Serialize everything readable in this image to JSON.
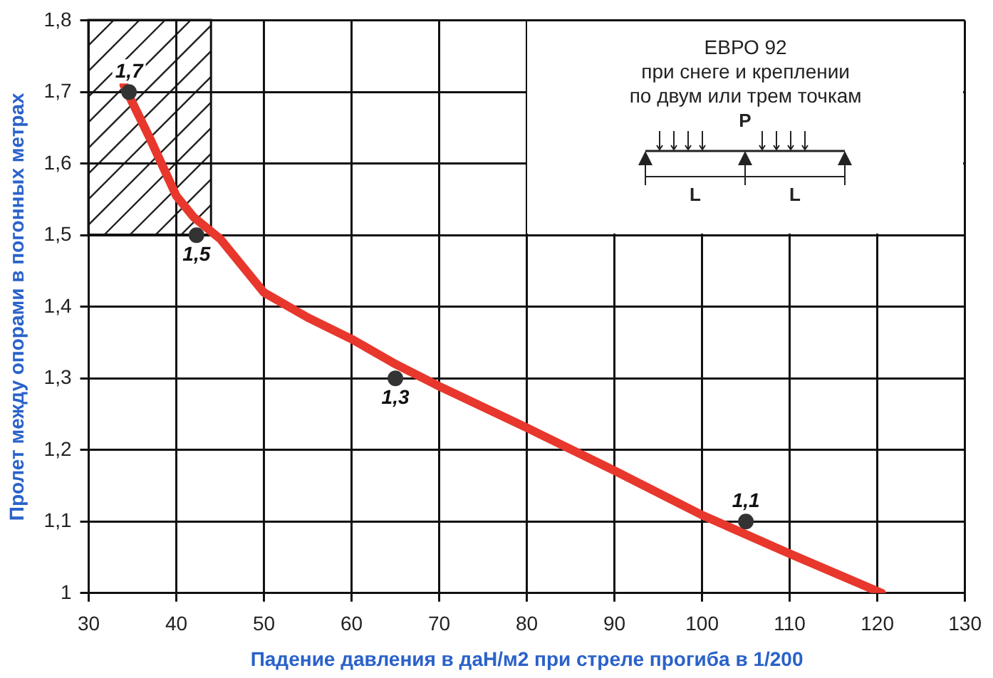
{
  "chart_data": {
    "type": "line",
    "xlabel": "Падение давления в даН/м2 при стреле прогиба в 1/200",
    "ylabel": "Пролет между опорами в погонных метрах",
    "xlim": [
      30,
      130
    ],
    "xticks": [
      30,
      40,
      50,
      60,
      70,
      80,
      90,
      100,
      110,
      120,
      130
    ],
    "ylim": [
      1,
      1.8
    ],
    "yticks": [
      1,
      {
        "value": 1.1,
        "label": "1,1"
      },
      {
        "value": 1.2,
        "label": "1,2"
      },
      {
        "value": 1.3,
        "label": "1,3"
      },
      {
        "value": 1.4,
        "label": "1,4"
      },
      {
        "value": 1.5,
        "label": "1,5"
      },
      {
        "value": 1.6,
        "label": "1,6"
      },
      {
        "value": 1.7,
        "label": "1,7"
      },
      {
        "value": 1.8,
        "label": "1,8"
      }
    ],
    "grid": true,
    "annotations": [
      "ЕВРО 92\nпри снеге и креплении\nпо двум или трем точкам",
      "P",
      "L",
      "L"
    ],
    "series": [
      {
        "color": "#e8372c",
        "marker": "none",
        "x": [
          34,
          37,
          40,
          42,
          45,
          50,
          55,
          60,
          65,
          70,
          80,
          90,
          100,
          110,
          120.5
        ],
        "values": [
          1.71,
          1.635,
          1.555,
          1.525,
          1.495,
          1.42,
          1.385,
          1.355,
          1.32,
          1.289,
          1.231,
          1.171,
          1.109,
          1.055,
          1.0
        ]
      },
      {
        "type": "scatter",
        "color": "#333333",
        "marker": "circle",
        "x": [
          34.6,
          42.3,
          65,
          105
        ],
        "values": [
          1.7,
          1.5,
          1.3,
          1.1
        ],
        "value_labels": [
          "1,7",
          "1,5",
          "1,3",
          "1,1"
        ]
      }
    ]
  }
}
